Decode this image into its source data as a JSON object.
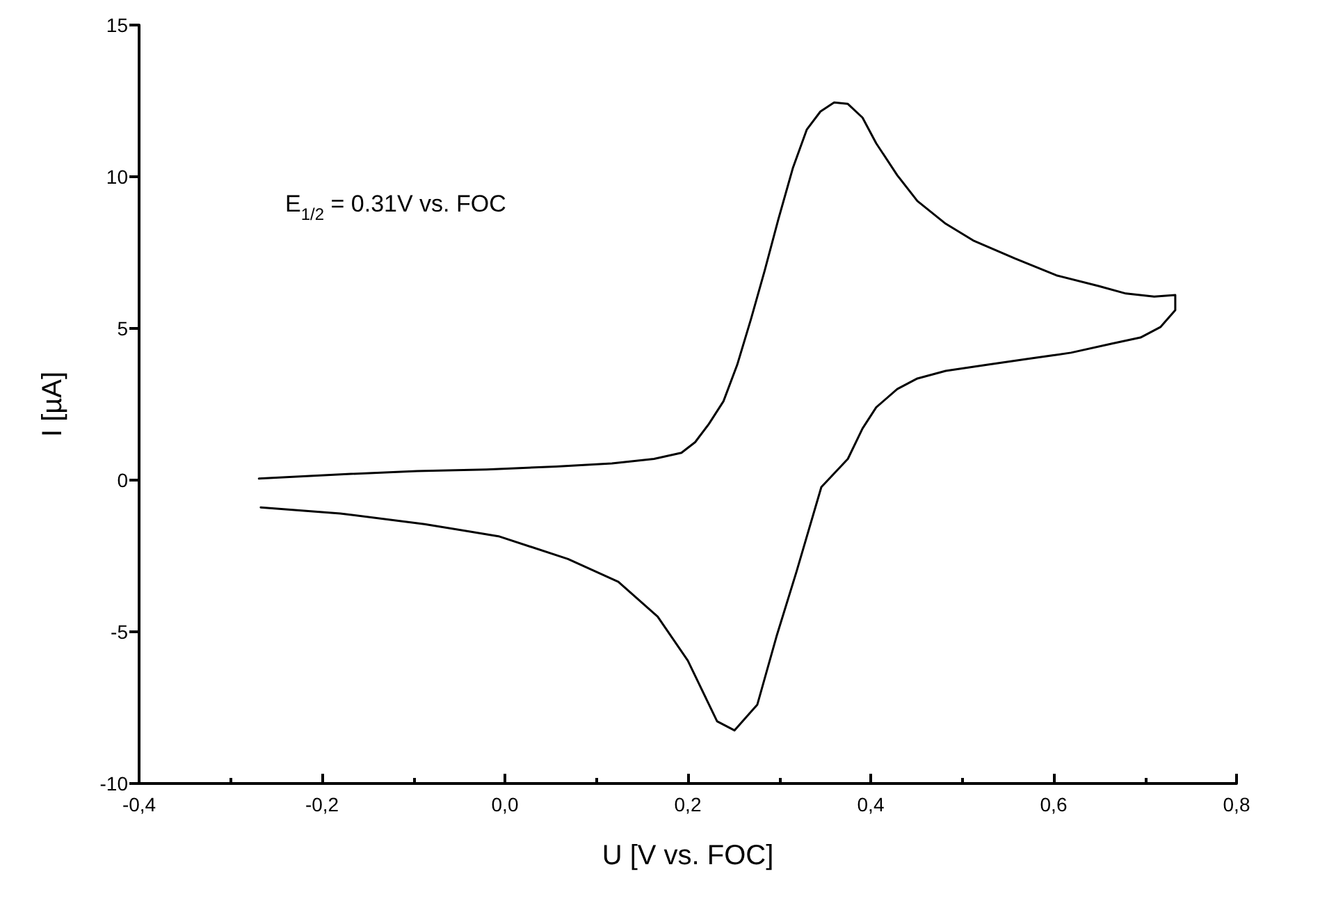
{
  "chart_data": {
    "type": "line",
    "xlabel": "U [V vs. FOC]",
    "ylabel": "I [µA]",
    "annotations": [
      "E$_{1/2}$ = 0.31V vs. FOC"
    ],
    "series": [
      {
        "color": "#000000",
        "x": [
          -0.269,
          -0.172,
          -0.096,
          -0.02,
          0.056,
          0.117,
          0.163,
          0.193,
          0.208,
          0.223,
          0.239,
          0.254,
          0.269,
          0.284,
          0.299,
          0.315,
          0.33,
          0.345,
          0.36,
          0.375,
          0.391,
          0.406,
          0.429,
          0.451,
          0.482,
          0.512,
          0.558,
          0.603,
          0.649,
          0.679,
          0.71,
          0.733,
          0.733,
          0.717,
          0.695,
          0.664,
          0.619,
          0.573,
          0.527,
          0.482,
          0.451,
          0.429,
          0.406,
          0.391,
          0.375,
          0.346,
          0.319,
          0.297,
          0.276,
          0.251,
          0.232,
          0.2,
          0.167,
          0.124,
          0.069,
          -0.007,
          -0.088,
          -0.18,
          -0.267
        ],
        "values": [
          0.05,
          0.2,
          0.3,
          0.35,
          0.45,
          0.55,
          0.7,
          0.9,
          1.25,
          1.85,
          2.6,
          3.8,
          5.3,
          6.9,
          8.6,
          10.3,
          11.55,
          12.15,
          12.45,
          12.4,
          11.95,
          11.1,
          10.05,
          9.2,
          8.45,
          7.9,
          7.3,
          6.75,
          6.4,
          6.15,
          6.05,
          6.1,
          5.6,
          5.05,
          4.7,
          4.5,
          4.2,
          4.0,
          3.8,
          3.6,
          3.35,
          3.0,
          2.4,
          1.7,
          0.7,
          -0.23,
          -3.0,
          -5.15,
          -7.4,
          -8.25,
          -7.95,
          -5.95,
          -4.5,
          -3.35,
          -2.6,
          -1.85,
          -1.45,
          -1.1,
          -0.9
        ]
      }
    ],
    "xlim": [
      -0.4,
      0.8
    ],
    "xticks": [
      {
        "value": -0.4,
        "label": "-0,4"
      },
      {
        "value": -0.2,
        "label": "-0,2"
      },
      {
        "value": 0,
        "label": "0,0"
      },
      {
        "value": 0.2,
        "label": "0,2"
      },
      {
        "value": 0.4,
        "label": "0,4"
      },
      {
        "value": 0.6,
        "label": "0,6"
      },
      {
        "value": 0.8,
        "label": "0,8"
      }
    ],
    "ylim": [
      -10,
      15
    ],
    "yticks": [
      -10,
      -5,
      0,
      5,
      10,
      15
    ],
    "grid": false,
    "marker": "none",
    "line_style": "solid"
  }
}
